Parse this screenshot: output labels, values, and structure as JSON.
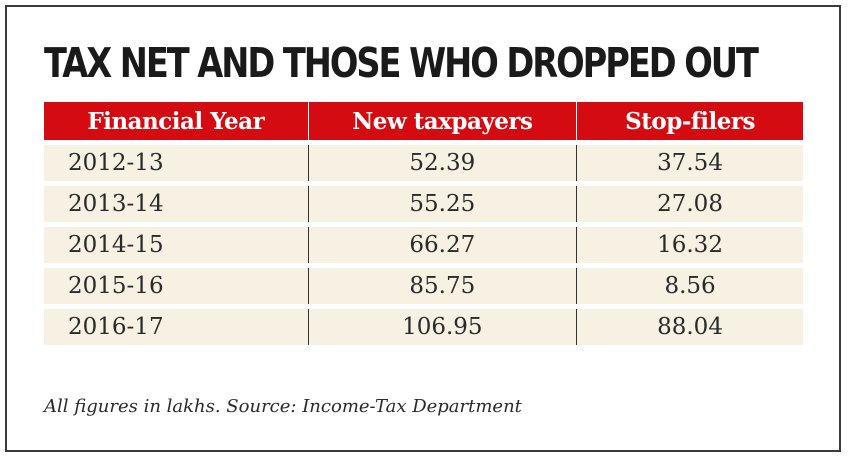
{
  "title": "TAX NET AND THOSE WHO DROPPED OUT",
  "columns": [
    "Financial Year",
    "New taxpayers",
    "Stop-filers"
  ],
  "rows": [
    [
      "2012-13",
      "52.39",
      "37.54"
    ],
    [
      "2013-14",
      "55.25",
      "27.08"
    ],
    [
      "2014-15",
      "66.27",
      "16.32"
    ],
    [
      "2015-16",
      "85.75",
      "8.56"
    ],
    [
      "2016-17",
      "106.95",
      "88.04"
    ]
  ],
  "footnote": "All figures in lakhs.  Source: Income-Tax Department",
  "colors": {
    "header_bg": "#d40c12",
    "header_text": "#ffffff",
    "row_bg": "#f7f1e4",
    "text": "#2a2a2a"
  }
}
